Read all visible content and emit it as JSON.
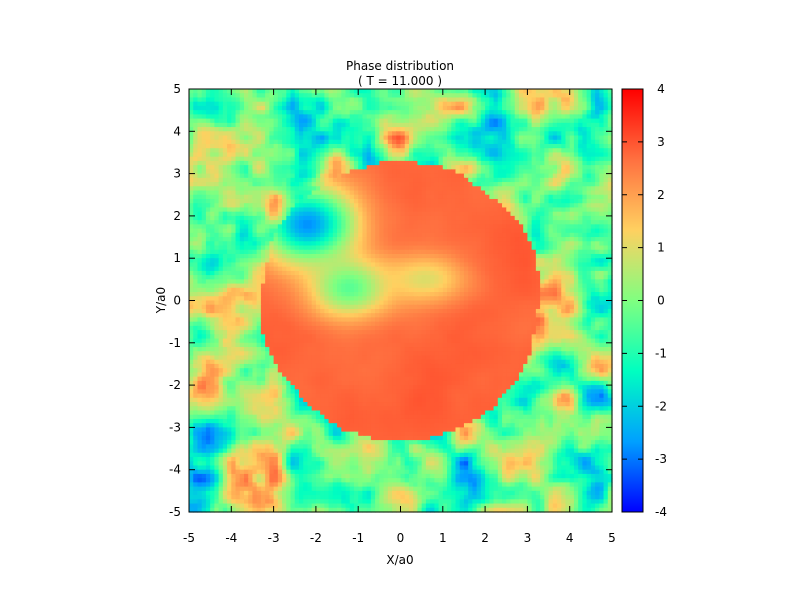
{
  "chart_data": {
    "type": "heatmap",
    "title": "Phase distribution",
    "subtitle": "( T = 11.000 )",
    "xlabel": "X/a0",
    "ylabel": "Y/a0",
    "xlim": [
      -5,
      5
    ],
    "ylim": [
      -5,
      5
    ],
    "x_ticks": [
      "-5",
      "-4",
      "-3",
      "-2",
      "-1",
      "0",
      "1",
      "2",
      "3",
      "4",
      "5"
    ],
    "y_ticks": [
      "-5",
      "-4",
      "-3",
      "-2",
      "-1",
      "0",
      "1",
      "2",
      "3",
      "4",
      "5"
    ],
    "colorbar": {
      "range": [
        -4,
        4
      ],
      "ticks": [
        "-4",
        "-3",
        "-2",
        "-1",
        "0",
        "1",
        "2",
        "3",
        "4"
      ],
      "colormap": "rainbow (blue to red)",
      "colors": [
        "#0000ff",
        "#00a0ff",
        "#00ffc0",
        "#80ff80",
        "#ffd060",
        "#ff7040",
        "#ff0000"
      ]
    },
    "grid": false,
    "features": [
      {
        "kind": "central disk",
        "phase": 3.0,
        "center": [
          0,
          0
        ],
        "radius": 3.2
      },
      {
        "kind": "vortex arm",
        "phase": -2.8,
        "center": [
          -2.2,
          1.8
        ]
      },
      {
        "kind": "inner lobe",
        "phase": -0.8,
        "center": [
          -1.2,
          0.3
        ]
      },
      {
        "kind": "turbulent edge",
        "phase_range": [
          -4,
          4
        ]
      }
    ]
  }
}
